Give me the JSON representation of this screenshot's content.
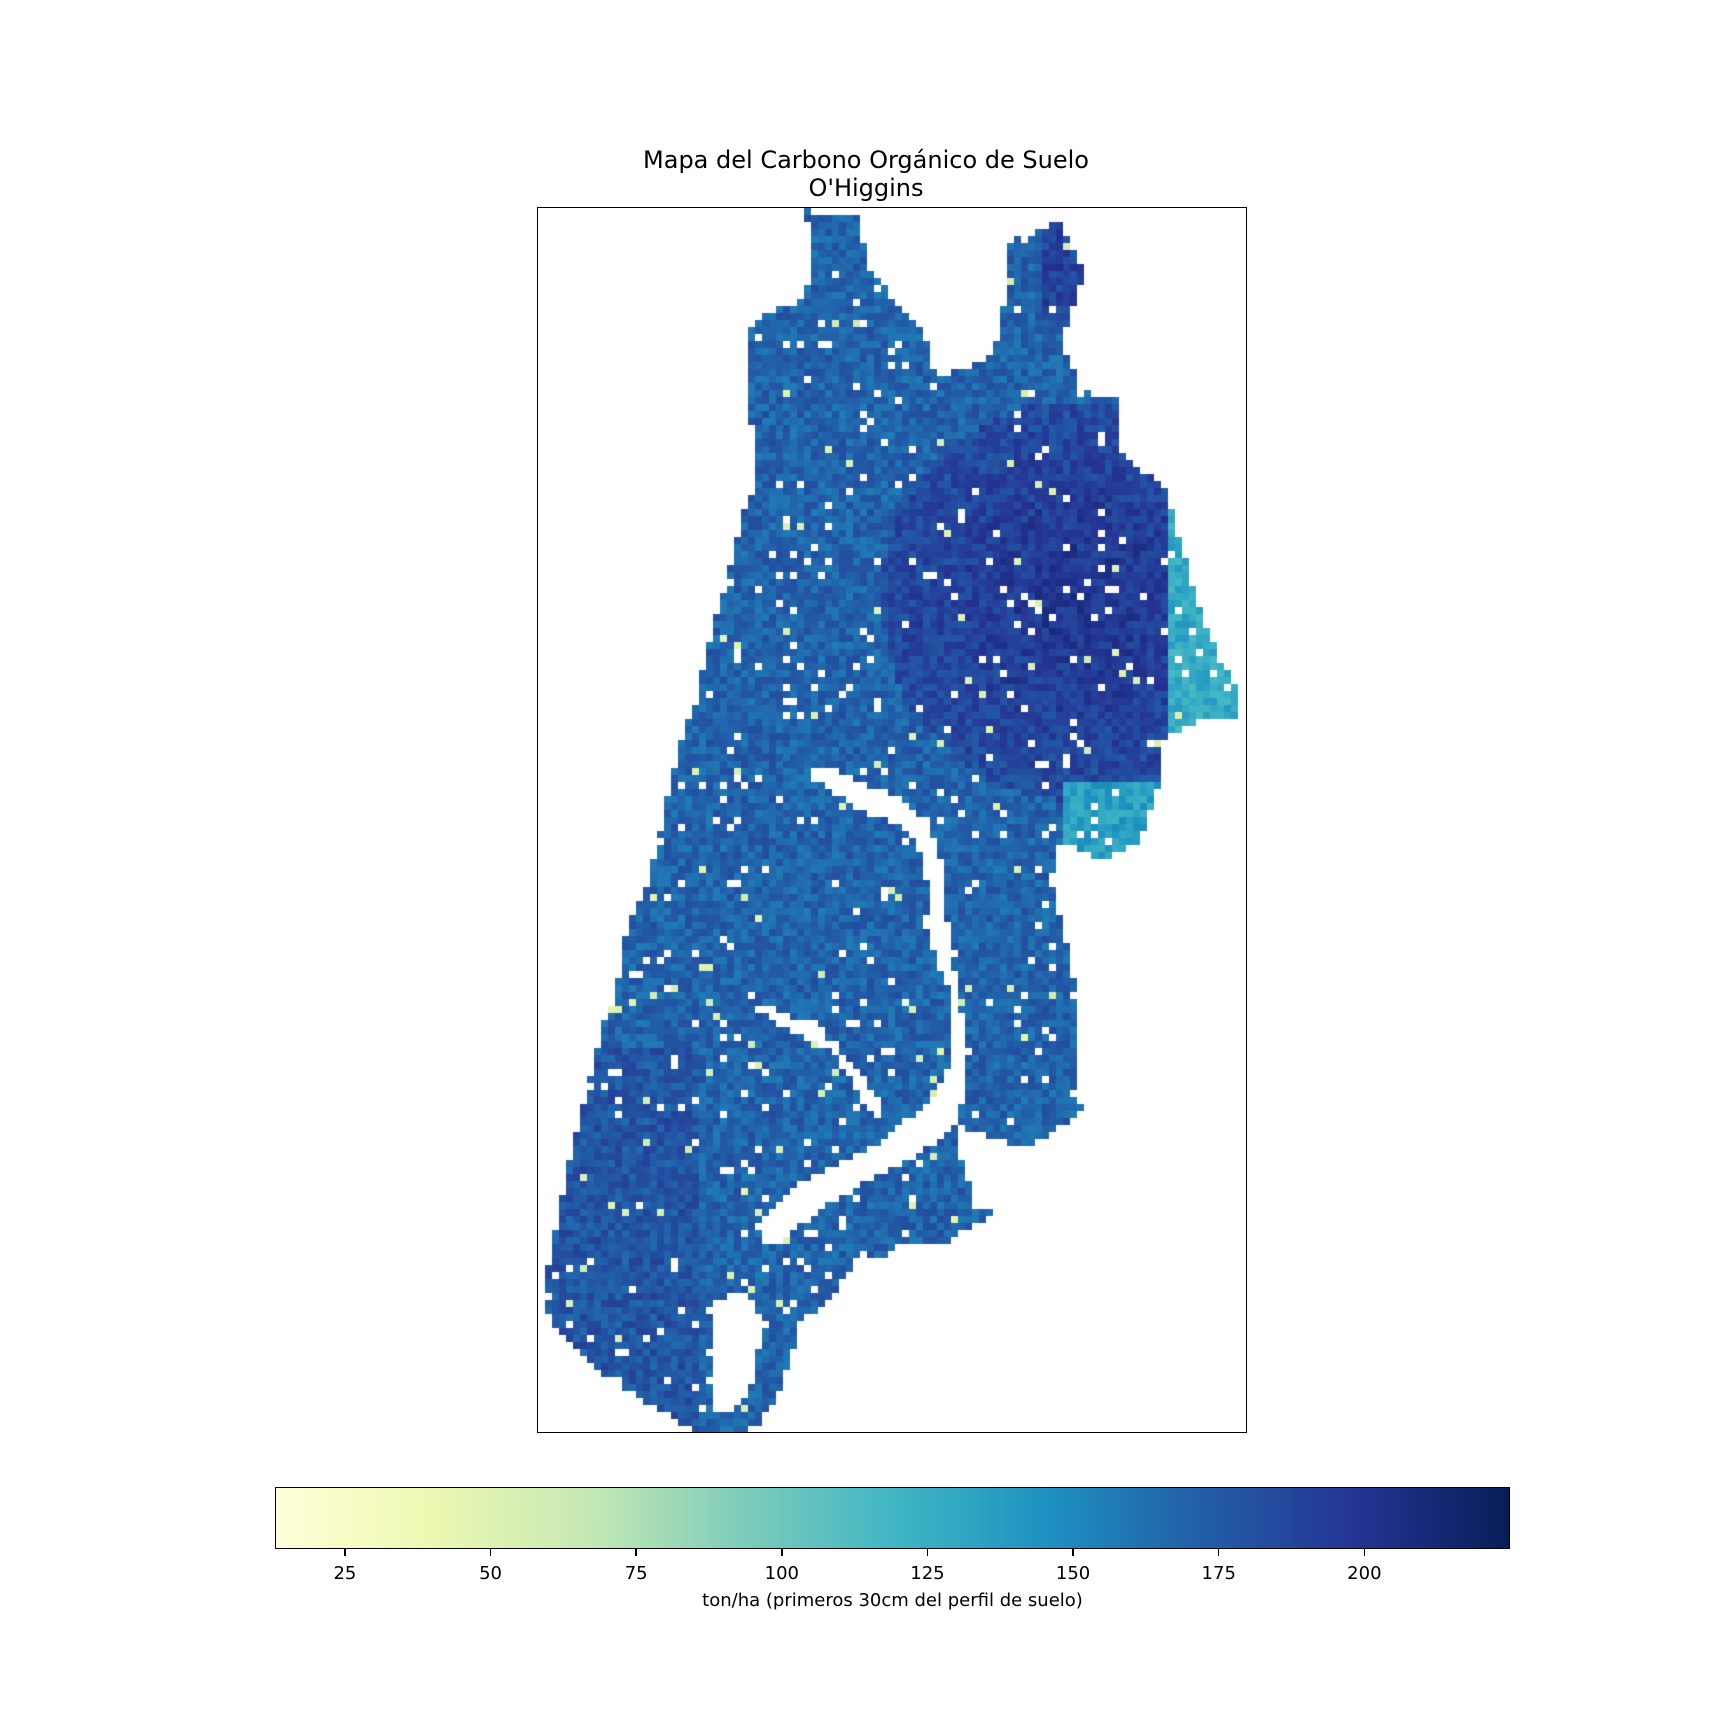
{
  "title_line1": "Mapa del Carbono Orgánico de Suelo",
  "title_line2": "O'Higgins",
  "colorbar": {
    "label": "ton/ha (primeros 30cm del perfil de suelo)",
    "min": 13,
    "max": 225,
    "ticks": [
      25,
      50,
      75,
      100,
      125,
      150,
      175,
      200
    ],
    "colormap": "YlGnBu",
    "colors": [
      "#ffffd9",
      "#edf8b1",
      "#c7e9b4",
      "#7fcdbb",
      "#41b6c4",
      "#1d91c0",
      "#225ea8",
      "#253494",
      "#081d58"
    ]
  },
  "map": {
    "region": "O'Higgins",
    "variable": "Soil organic carbon stock",
    "typical_range_ton_ha": [
      150,
      210
    ],
    "low_value_patches_ton_ha": [
      40,
      60
    ],
    "east_margin_values_ton_ha": [
      110,
      140
    ]
  }
}
